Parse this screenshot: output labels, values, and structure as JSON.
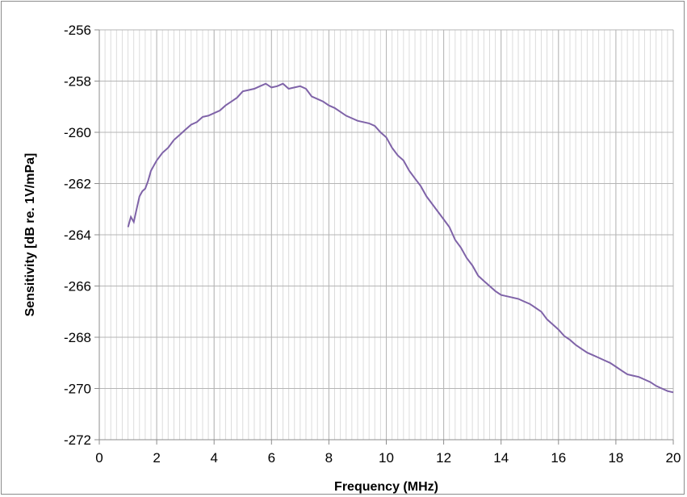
{
  "chart_data": {
    "type": "line",
    "title": "",
    "xlabel": "Frequency (MHz)",
    "ylabel": "Sensitivity [dB re. 1V/mPa]",
    "xlim": [
      0,
      20
    ],
    "ylim": [
      -272,
      -256
    ],
    "x_ticks": [
      "0",
      "2",
      "4",
      "6",
      "8",
      "10",
      "12",
      "14",
      "16",
      "18",
      "20"
    ],
    "y_ticks": [
      "-256",
      "-258",
      "-260",
      "-262",
      "-264",
      "-266",
      "-268",
      "-270",
      "-272"
    ],
    "x_minor_step": 0.2,
    "grid": true,
    "legend": "none",
    "line_color": "#7f63a8",
    "series": [
      {
        "x": [
          1.0,
          1.1,
          1.2,
          1.3,
          1.4,
          1.5,
          1.6,
          1.7,
          1.8,
          1.9,
          2.0,
          2.2,
          2.4,
          2.6,
          2.8,
          3.0,
          3.2,
          3.4,
          3.6,
          3.8,
          4.0,
          4.2,
          4.4,
          4.6,
          4.8,
          5.0,
          5.2,
          5.4,
          5.6,
          5.8,
          6.0,
          6.2,
          6.4,
          6.6,
          6.8,
          7.0,
          7.2,
          7.4,
          7.6,
          7.8,
          8.0,
          8.2,
          8.4,
          8.6,
          8.8,
          9.0,
          9.2,
          9.4,
          9.6,
          9.8,
          10.0,
          10.2,
          10.4,
          10.6,
          10.8,
          11.0,
          11.2,
          11.4,
          11.6,
          11.8,
          12.0,
          12.2,
          12.4,
          12.6,
          12.8,
          13.0,
          13.2,
          13.4,
          13.6,
          13.8,
          14.0,
          14.2,
          14.4,
          14.6,
          14.8,
          15.0,
          15.2,
          15.4,
          15.6,
          15.8,
          16.0,
          16.2,
          16.4,
          16.6,
          16.8,
          17.0,
          17.2,
          17.4,
          17.6,
          17.8,
          18.0,
          18.2,
          18.4,
          18.6,
          18.8,
          19.0,
          19.2,
          19.4,
          19.6,
          19.8,
          20.0
        ],
        "y": [
          -263.7,
          -263.3,
          -263.5,
          -263.0,
          -262.5,
          -262.3,
          -262.2,
          -261.9,
          -261.5,
          -261.3,
          -261.1,
          -260.8,
          -260.6,
          -260.3,
          -260.1,
          -259.9,
          -259.7,
          -259.6,
          -259.4,
          -259.35,
          -259.25,
          -259.15,
          -258.95,
          -258.8,
          -258.65,
          -258.4,
          -258.35,
          -258.3,
          -258.2,
          -258.1,
          -258.25,
          -258.2,
          -258.1,
          -258.3,
          -258.25,
          -258.2,
          -258.3,
          -258.6,
          -258.7,
          -258.8,
          -258.95,
          -259.05,
          -259.2,
          -259.35,
          -259.45,
          -259.55,
          -259.6,
          -259.65,
          -259.75,
          -260.0,
          -260.2,
          -260.6,
          -260.9,
          -261.1,
          -261.5,
          -261.8,
          -262.1,
          -262.5,
          -262.8,
          -263.1,
          -263.4,
          -263.7,
          -264.2,
          -264.5,
          -264.9,
          -265.2,
          -265.6,
          -265.8,
          -266.0,
          -266.2,
          -266.35,
          -266.4,
          -266.45,
          -266.5,
          -266.6,
          -266.7,
          -266.85,
          -267.0,
          -267.3,
          -267.5,
          -267.7,
          -267.95,
          -268.1,
          -268.3,
          -268.45,
          -268.6,
          -268.7,
          -268.8,
          -268.9,
          -269.0,
          -269.15,
          -269.3,
          -269.45,
          -269.5,
          -269.55,
          -269.65,
          -269.75,
          -269.9,
          -270.0,
          -270.1,
          -270.15
        ]
      }
    ]
  }
}
